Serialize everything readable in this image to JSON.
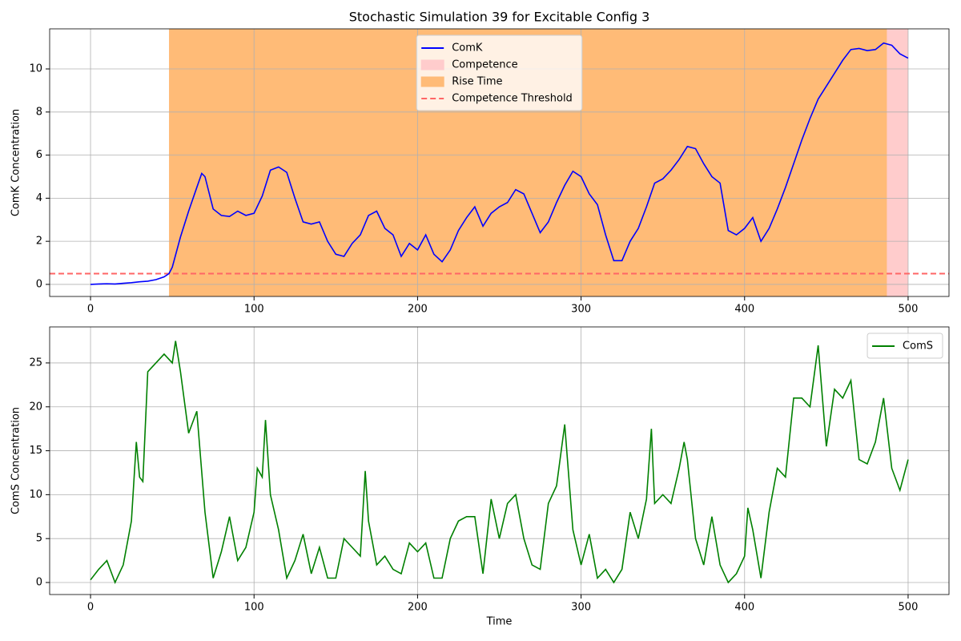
{
  "chart_data": [
    {
      "type": "line",
      "title": "Stochastic Simulation 39 for Excitable Config 3",
      "ylabel": "ComK Concentration",
      "x": [
        0,
        5,
        10,
        15,
        20,
        25,
        30,
        35,
        40,
        45,
        48,
        50,
        55,
        60,
        65,
        68,
        70,
        75,
        80,
        85,
        90,
        95,
        100,
        105,
        110,
        115,
        120,
        125,
        130,
        135,
        140,
        145,
        150,
        155,
        160,
        165,
        170,
        175,
        180,
        185,
        190,
        195,
        200,
        205,
        210,
        215,
        220,
        225,
        230,
        235,
        240,
        245,
        250,
        255,
        260,
        265,
        270,
        275,
        280,
        285,
        290,
        295,
        300,
        305,
        310,
        315,
        320,
        325,
        330,
        335,
        340,
        345,
        350,
        355,
        360,
        365,
        370,
        375,
        380,
        385,
        390,
        395,
        400,
        405,
        410,
        415,
        420,
        425,
        430,
        435,
        440,
        445,
        450,
        455,
        460,
        465,
        470,
        475,
        480,
        485,
        490,
        495,
        500
      ],
      "series": [
        {
          "name": "ComK",
          "color": "#0000ff",
          "values": [
            0,
            0.02,
            0.03,
            0.02,
            0.05,
            0.08,
            0.12,
            0.15,
            0.22,
            0.35,
            0.5,
            0.8,
            2.2,
            3.4,
            4.5,
            5.15,
            5.0,
            3.5,
            3.2,
            3.15,
            3.4,
            3.2,
            3.3,
            4.1,
            5.3,
            5.45,
            5.2,
            4.0,
            2.9,
            2.8,
            2.9,
            2.0,
            1.4,
            1.3,
            1.9,
            2.3,
            3.2,
            3.4,
            2.6,
            2.3,
            1.3,
            1.9,
            1.6,
            2.3,
            1.4,
            1.05,
            1.6,
            2.5,
            3.1,
            3.6,
            2.7,
            3.3,
            3.6,
            3.8,
            4.4,
            4.2,
            3.3,
            2.4,
            2.9,
            3.8,
            4.6,
            5.25,
            5.0,
            4.2,
            3.7,
            2.3,
            1.1,
            1.1,
            2.0,
            2.6,
            3.6,
            4.7,
            4.9,
            5.3,
            5.8,
            6.4,
            6.3,
            5.6,
            5.0,
            4.7,
            2.5,
            2.3,
            2.6,
            3.1,
            2.0,
            2.6,
            3.5,
            4.5,
            5.6,
            6.7,
            7.7,
            8.6,
            9.2,
            9.8,
            10.4,
            10.9,
            10.95,
            10.85,
            10.9,
            11.2,
            11.1,
            10.7,
            10.5
          ]
        }
      ],
      "spans": [
        {
          "name": "Competence",
          "color": "#ffcccc",
          "start": 48,
          "end": 500
        },
        {
          "name": "Rise Time",
          "color": "#ffbb77",
          "start": 48,
          "end": 487
        }
      ],
      "threshold": {
        "name": "Competence Threshold",
        "value": 0.5,
        "color": "#ff6666"
      },
      "xlim": [
        -25,
        525
      ],
      "ylim": [
        -0.56,
        11.86
      ],
      "xticks": [
        0,
        100,
        200,
        300,
        400,
        500
      ],
      "yticks": [
        0,
        2,
        4,
        6,
        8,
        10
      ],
      "grid": true,
      "legend": "upper center"
    },
    {
      "type": "line",
      "xlabel": "Time",
      "ylabel": "ComS Concentration",
      "x": [
        0,
        5,
        10,
        15,
        20,
        25,
        28,
        30,
        32,
        35,
        40,
        45,
        50,
        52,
        55,
        60,
        65,
        70,
        75,
        80,
        85,
        90,
        95,
        100,
        102,
        105,
        107,
        110,
        115,
        120,
        125,
        130,
        135,
        140,
        145,
        150,
        155,
        160,
        165,
        168,
        170,
        175,
        180,
        185,
        190,
        195,
        200,
        205,
        210,
        215,
        220,
        225,
        230,
        235,
        240,
        245,
        250,
        255,
        260,
        265,
        270,
        275,
        280,
        285,
        290,
        295,
        300,
        305,
        310,
        315,
        320,
        325,
        330,
        335,
        340,
        343,
        345,
        350,
        355,
        360,
        363,
        365,
        370,
        375,
        380,
        385,
        390,
        395,
        400,
        402,
        405,
        410,
        415,
        420,
        425,
        430,
        435,
        440,
        445,
        450,
        455,
        460,
        465,
        470,
        475,
        480,
        485,
        490,
        495,
        500
      ],
      "series": [
        {
          "name": "ComS",
          "color": "#008000",
          "values": [
            0.3,
            1.5,
            2.5,
            0,
            2,
            7,
            16,
            12,
            11.5,
            24,
            25,
            26,
            25,
            27.5,
            24,
            17,
            19.5,
            8,
            0.5,
            3.5,
            7.5,
            2.5,
            4,
            8,
            13,
            12,
            18.5,
            10,
            6,
            0.5,
            2.5,
            5.5,
            1,
            4,
            0.5,
            0.5,
            5,
            4,
            3,
            12.7,
            7,
            2,
            3,
            1.5,
            1,
            4.5,
            3.5,
            4.5,
            0.5,
            0.5,
            5,
            7,
            7.5,
            7.5,
            1,
            9.5,
            5,
            9,
            10,
            5,
            2,
            1.5,
            9,
            11,
            18,
            6,
            2,
            5.5,
            0.5,
            1.5,
            0,
            1.5,
            8,
            5,
            9.5,
            17.5,
            9,
            10,
            9,
            13,
            16,
            14,
            5,
            2,
            7.5,
            2,
            0,
            1,
            3,
            8.5,
            6,
            0.5,
            8,
            13,
            12,
            21,
            21,
            20,
            27,
            15.5,
            22,
            21,
            23,
            14,
            13.5,
            16,
            21,
            13,
            10.5,
            14
          ]
        }
      ],
      "xlim": [
        -25,
        525
      ],
      "ylim": [
        -1.37,
        29.1
      ],
      "xticks": [
        0,
        100,
        200,
        300,
        400,
        500
      ],
      "yticks": [
        0,
        5,
        10,
        15,
        20,
        25
      ],
      "grid": true,
      "legend": "upper right"
    }
  ]
}
